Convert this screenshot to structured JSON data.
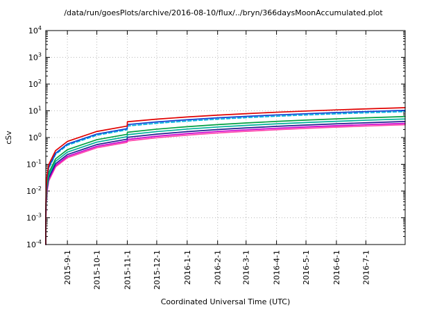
{
  "chart_data": {
    "type": "line",
    "title": "/data/run/goesPlots/archive/2016-08-10/flux/../bryn/366daysMoonAccumulated.plot",
    "xlabel": "Coordinated Universal Time (UTC)",
    "ylabel": "cSv",
    "y_axis": {
      "scale": "log",
      "ylim": [
        0.0001,
        10000
      ],
      "tick_exponents": [
        -4,
        -3,
        -2,
        -1,
        0,
        1,
        2,
        3,
        4
      ]
    },
    "x_range_days": [
      0,
      366
    ],
    "x_ticks": [
      {
        "day": 22,
        "label": "2015-9-1"
      },
      {
        "day": 52,
        "label": "2015-10-1"
      },
      {
        "day": 83,
        "label": "2015-11-1"
      },
      {
        "day": 113,
        "label": "2015-12-1"
      },
      {
        "day": 144,
        "label": "2016-1-1"
      },
      {
        "day": 175,
        "label": "2016-2-1"
      },
      {
        "day": 204,
        "label": "2016-3-1"
      },
      {
        "day": 235,
        "label": "2016-4-1"
      },
      {
        "day": 265,
        "label": "2016-5-1"
      },
      {
        "day": 296,
        "label": "2016-6-1"
      },
      {
        "day": 326,
        "label": "2016-7-1"
      }
    ],
    "grid": true,
    "legend": "none",
    "x_days": [
      0.003,
      0.01,
      0.03,
      0.1,
      0.3,
      1,
      3,
      10,
      22,
      52,
      82.9,
      83.1,
      113,
      144,
      175,
      204,
      235,
      265,
      296,
      326,
      366
    ],
    "series": [
      {
        "name": "pink",
        "color": "#ff44aa",
        "dash": "",
        "values": [
          2.4e-05,
          8e-05,
          0.00024,
          0.0008,
          0.0024,
          0.008,
          0.024,
          0.08,
          0.176,
          0.416,
          0.663,
          0.74,
          0.98,
          1.23,
          1.48,
          1.71,
          1.96,
          2.2,
          2.45,
          2.69,
          3.01
        ]
      },
      {
        "name": "magenta",
        "color": "#cc00cc",
        "dash": "",
        "values": [
          2.7e-05,
          9e-05,
          0.00027,
          0.0009,
          0.0027,
          0.009,
          0.027,
          0.09,
          0.198,
          0.468,
          0.746,
          0.85,
          1.12,
          1.4,
          1.68,
          1.94,
          2.22,
          2.49,
          2.76,
          3.03,
          3.39
        ]
      },
      {
        "name": "navy",
        "color": "#202090",
        "dash": "",
        "values": [
          3.2e-05,
          0.000105,
          0.00032,
          0.00105,
          0.00315,
          0.0105,
          0.0315,
          0.105,
          0.231,
          0.546,
          0.87,
          1.02,
          1.34,
          1.66,
          1.99,
          2.29,
          2.62,
          2.93,
          3.26,
          3.57,
          3.99
        ]
      },
      {
        "name": "teal",
        "color": "#00b09a",
        "dash": "",
        "values": [
          3.9e-05,
          0.00013,
          0.00039,
          0.0013,
          0.0039,
          0.013,
          0.039,
          0.13,
          0.286,
          0.676,
          1.078,
          1.28,
          1.67,
          2.07,
          2.48,
          2.85,
          3.26,
          3.65,
          4.05,
          4.44,
          4.96
        ]
      },
      {
        "name": "green",
        "color": "#00a040",
        "dash": "",
        "values": [
          4.8e-05,
          0.00016,
          0.00048,
          0.0016,
          0.0048,
          0.016,
          0.048,
          0.16,
          0.352,
          0.832,
          1.326,
          1.58,
          2.06,
          2.55,
          3.05,
          3.51,
          4.01,
          4.49,
          4.99,
          5.47,
          6.11
        ]
      },
      {
        "name": "cyan-dashed",
        "color": "#00b4e0",
        "dash": "5,3",
        "values": [
          7e-05,
          0.000235,
          0.0007,
          0.00235,
          0.00705,
          0.0235,
          0.0705,
          0.235,
          0.517,
          1.222,
          1.948,
          2.7,
          3.41,
          4.13,
          4.86,
          5.54,
          6.27,
          6.98,
          7.71,
          8.41,
          9.35
        ]
      },
      {
        "name": "blue",
        "color": "#1040d0",
        "dash": "",
        "values": [
          7.8e-05,
          0.00026,
          0.00078,
          0.0026,
          0.0078,
          0.026,
          0.078,
          0.26,
          0.572,
          1.352,
          2.155,
          3.06,
          3.84,
          4.64,
          5.45,
          6.2,
          7.01,
          7.79,
          8.6,
          9.38,
          10.4
        ]
      },
      {
        "name": "red",
        "color": "#e00000",
        "dash": "",
        "values": [
          0.0001,
          0.000325,
          0.000975,
          0.00325,
          0.00975,
          0.0325,
          0.0975,
          0.325,
          0.715,
          1.69,
          2.69,
          3.9,
          4.87,
          5.88,
          6.89,
          7.83,
          8.84,
          9.81,
          10.82,
          11.79,
          13.1
        ]
      }
    ],
    "colors": {
      "grid": "#b8b8b8",
      "border": "#000000"
    }
  }
}
